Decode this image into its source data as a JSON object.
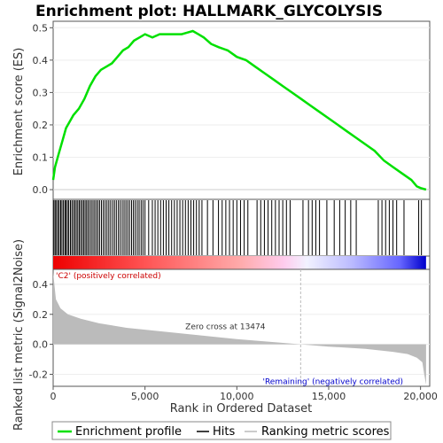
{
  "chart_data": {
    "type": "line",
    "title": "Enrichment plot: HALLMARK_GLYCOLYSIS",
    "xlabel": "Rank in Ordered Dataset",
    "es_ylabel": "Enrichment score (ES)",
    "metric_ylabel": "Ranked list metric (Signal2Noise)",
    "xlim": [
      0,
      20500
    ],
    "es_ylim": [
      -0.03,
      0.52
    ],
    "metric_ylim": [
      -0.28,
      0.5
    ],
    "x_ticks": [
      0,
      5000,
      10000,
      15000,
      20000
    ],
    "x_tick_labels": [
      "0",
      "5,000",
      "10,000",
      "15,000",
      "20,000"
    ],
    "es_ticks": [
      0.0,
      0.1,
      0.2,
      0.3,
      0.4,
      0.5
    ],
    "es_tick_labels": [
      "0.0",
      "0.1",
      "0.2",
      "0.3",
      "0.4",
      "0.5"
    ],
    "metric_ticks": [
      -0.2,
      0.0,
      0.2,
      0.4
    ],
    "metric_tick_labels": [
      "-0.2",
      "0.0",
      "0.2",
      "0.4"
    ],
    "zero_cross": 13474,
    "zero_cross_label": "Zero cross at 13474",
    "pos_label": "'C2' (positively correlated)",
    "neg_label": "'Remaining' (negatively correlated)",
    "series": [
      {
        "name": "Enrichment profile",
        "color": "#00e000",
        "x": [
          0,
          100,
          300,
          500,
          700,
          900,
          1100,
          1400,
          1700,
          2000,
          2300,
          2600,
          2900,
          3200,
          3500,
          3800,
          4100,
          4400,
          4700,
          5000,
          5400,
          5800,
          6200,
          6600,
          7000,
          7300,
          7600,
          7900,
          8200,
          8600,
          9000,
          9500,
          10000,
          10500,
          11000,
          11500,
          12000,
          12500,
          13000,
          13500,
          14000,
          14500,
          15000,
          15500,
          16000,
          16500,
          17000,
          17500,
          18000,
          18500,
          19000,
          19500,
          19800,
          20000,
          20300
        ],
        "y": [
          0.03,
          0.07,
          0.11,
          0.15,
          0.19,
          0.21,
          0.23,
          0.25,
          0.28,
          0.32,
          0.35,
          0.37,
          0.38,
          0.39,
          0.41,
          0.43,
          0.44,
          0.46,
          0.47,
          0.48,
          0.47,
          0.48,
          0.48,
          0.48,
          0.48,
          0.485,
          0.49,
          0.48,
          0.47,
          0.45,
          0.44,
          0.43,
          0.41,
          0.4,
          0.38,
          0.36,
          0.34,
          0.32,
          0.3,
          0.28,
          0.26,
          0.24,
          0.22,
          0.2,
          0.18,
          0.16,
          0.14,
          0.12,
          0.09,
          0.07,
          0.05,
          0.03,
          0.01,
          0.005,
          0.0
        ]
      },
      {
        "name": "Hits",
        "color": "#000000",
        "positions": [
          40,
          110,
          180,
          260,
          330,
          410,
          480,
          560,
          640,
          700,
          780,
          850,
          940,
          1020,
          1100,
          1180,
          1260,
          1340,
          1420,
          1500,
          1580,
          1660,
          1740,
          1820,
          1900,
          1990,
          2080,
          2170,
          2260,
          2350,
          2440,
          2530,
          2630,
          2730,
          2830,
          2930,
          3030,
          3130,
          3240,
          3340,
          3440,
          3550,
          3650,
          3760,
          3860,
          3960,
          4060,
          4160,
          4270,
          4370,
          4470,
          4580,
          4680,
          4790,
          4890,
          5000,
          5200,
          5400,
          5550,
          5700,
          5850,
          6000,
          6150,
          6300,
          6450,
          6600,
          6750,
          6900,
          7050,
          7200,
          7350,
          7500,
          7650,
          7800,
          7950,
          8100,
          8400,
          8700,
          9000,
          9200,
          9400,
          9600,
          9800,
          10000,
          10200,
          10400,
          10600,
          11100,
          11300,
          11500,
          11700,
          11900,
          12100,
          12300,
          12500,
          12700,
          12900,
          13600,
          13900,
          14100,
          14300,
          14500,
          14900,
          15300,
          15600,
          15900,
          16200,
          16500,
          17700,
          17900,
          18100,
          18300,
          18500,
          18700,
          19100,
          19900,
          20050
        ]
      },
      {
        "name": "Ranking metric scores",
        "color": "#bbbbbb",
        "x": [
          0,
          150,
          400,
          800,
          1500,
          2500,
          4000,
          6000,
          8000,
          10000,
          12000,
          13474,
          15000,
          17000,
          18500,
          19300,
          19800,
          20100,
          20200,
          20300
        ],
        "y": [
          0.48,
          0.3,
          0.24,
          0.2,
          0.17,
          0.14,
          0.11,
          0.085,
          0.06,
          0.035,
          0.015,
          0.0,
          -0.015,
          -0.03,
          -0.05,
          -0.065,
          -0.09,
          -0.12,
          -0.2,
          -0.27
        ]
      }
    ],
    "legend": {
      "placement": "bottom",
      "entries": [
        "Enrichment profile",
        "Hits",
        "Ranking metric scores"
      ]
    }
  },
  "colors": {
    "enrichment_line": "#00e000",
    "hits": "#000000",
    "metric_fill": "#bbbbbb",
    "positive_label": "#cc0000",
    "negative_label": "#0000cc",
    "heat_red": "#ff0000",
    "heat_blue": "#0000ff"
  }
}
